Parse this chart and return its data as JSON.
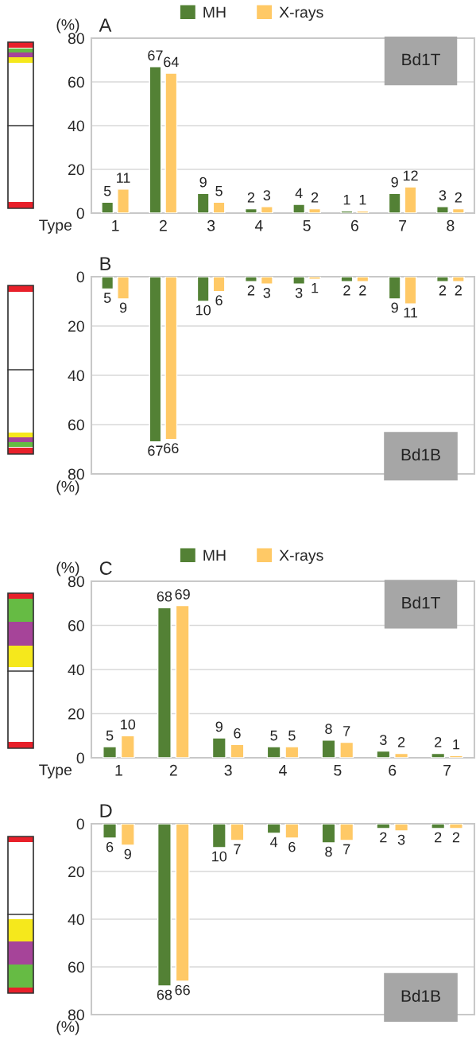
{
  "chart_data": [
    {
      "type": "bar",
      "title": "A",
      "ylabel": "(%)",
      "xlabel": "Type",
      "categories": [
        "1",
        "2",
        "3",
        "4",
        "5",
        "6",
        "7",
        "8"
      ],
      "series": [
        {
          "name": "MH",
          "color": "#538135",
          "values": [
            5,
            67,
            9,
            2,
            4,
            1,
            9,
            3
          ]
        },
        {
          "name": "X-rays",
          "color": "#ffc966",
          "values": [
            11,
            64,
            5,
            3,
            2,
            1,
            12,
            2
          ]
        }
      ],
      "ylim": [
        0,
        80
      ],
      "yticks": [
        0,
        20,
        40,
        60,
        80
      ],
      "grid": "y",
      "legend": "top",
      "data_labels": true,
      "annotations": [
        "Bd1T"
      ]
    },
    {
      "type": "bar",
      "title": "B",
      "ylabel": "(%)",
      "categories": [
        null,
        null,
        null,
        null,
        null,
        null,
        null,
        null
      ],
      "series": [
        {
          "color": "#538135",
          "values": [
            5,
            67,
            10,
            2,
            3,
            2,
            9,
            2
          ]
        },
        {
          "color": "#ffc966",
          "values": [
            9,
            66,
            6,
            3,
            1,
            2,
            11,
            2
          ]
        }
      ],
      "ylim": [
        80,
        0
      ],
      "yticks": [
        0,
        20,
        40,
        60,
        80
      ],
      "grid": "y",
      "tick_labels": "y",
      "data_labels": true,
      "annotations": [
        "Bd1B"
      ]
    },
    {
      "type": "bar",
      "title": "C",
      "ylabel": "(%)",
      "xlabel": "Type",
      "categories": [
        "1",
        "2",
        "3",
        "4",
        "5",
        "6",
        "7"
      ],
      "series": [
        {
          "name": "MH",
          "color": "#538135",
          "values": [
            5,
            68,
            9,
            5,
            8,
            3,
            2
          ]
        },
        {
          "name": "X-rays",
          "color": "#ffc966",
          "values": [
            10,
            69,
            6,
            5,
            7,
            2,
            1
          ]
        }
      ],
      "ylim": [
        0,
        80
      ],
      "yticks": [
        0,
        20,
        40,
        60,
        80
      ],
      "grid": "y",
      "legend": "top",
      "data_labels": true,
      "annotations": [
        "Bd1T"
      ]
    },
    {
      "type": "bar",
      "title": "D",
      "ylabel": "(%)",
      "categories": [
        null,
        null,
        null,
        null,
        null,
        null,
        null
      ],
      "series": [
        {
          "color": "#538135",
          "values": [
            6,
            68,
            10,
            4,
            8,
            2,
            2
          ]
        },
        {
          "color": "#ffc966",
          "values": [
            9,
            66,
            7,
            6,
            7,
            3,
            2
          ]
        }
      ],
      "ylim": [
        80,
        0
      ],
      "yticks": [
        0,
        20,
        40,
        60,
        80
      ],
      "grid": "y",
      "tick_labels": "y",
      "data_labels": true,
      "annotations": [
        "Bd1B"
      ]
    }
  ]
}
